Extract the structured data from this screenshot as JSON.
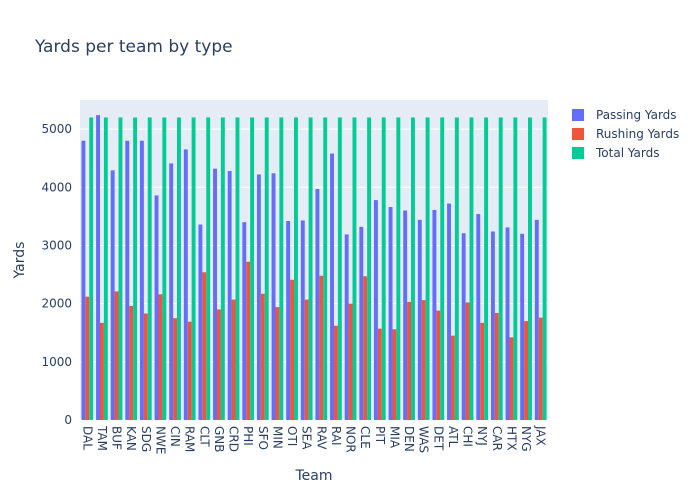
{
  "chart_data": {
    "type": "bar",
    "title": "Yards per team by type",
    "xlabel": "Team",
    "ylabel": "Yards",
    "ylim": [
      0,
      5500
    ],
    "yticks": [
      0,
      1000,
      2000,
      3000,
      4000,
      5000
    ],
    "grid": true,
    "legend": "top-right",
    "categories": [
      "DAL",
      "TAM",
      "BUF",
      "KAN",
      "SDG",
      "NWE",
      "CIN",
      "RAM",
      "CLT",
      "GNB",
      "CRD",
      "PHI",
      "SFO",
      "MIN",
      "OTI",
      "SEA",
      "RAV",
      "RAI",
      "NOR",
      "CLE",
      "PIT",
      "MIA",
      "DEN",
      "WAS",
      "DET",
      "ATL",
      "CHI",
      "NYJ",
      "CAR",
      "HTX",
      "NYG",
      "JAX"
    ],
    "series": [
      {
        "name": "Passing Yards",
        "color": "#636efa",
        "values": [
          4800,
          5240,
          4290,
          4800,
          4800,
          3860,
          4410,
          4650,
          3360,
          4320,
          4280,
          3400,
          4220,
          4240,
          3420,
          3430,
          3970,
          4580,
          3190,
          3320,
          3780,
          3660,
          3600,
          3440,
          3610,
          3720,
          3210,
          3540,
          3240,
          3310,
          3200,
          3440
        ]
      },
      {
        "name": "Rushing Yards",
        "color": "#ef553b",
        "values": [
          2120,
          1670,
          2210,
          1960,
          1830,
          2160,
          1750,
          1690,
          2540,
          1900,
          2070,
          2720,
          2170,
          1940,
          2410,
          2070,
          2480,
          1620,
          2000,
          2470,
          1570,
          1560,
          2030,
          2060,
          1880,
          1450,
          2020,
          1670,
          1840,
          1420,
          1700,
          1760
        ]
      },
      {
        "name": "Total Yards",
        "color": "#00cc96",
        "values": [
          5200,
          5200,
          5200,
          5200,
          5200,
          5200,
          5200,
          5200,
          5200,
          5200,
          5200,
          5200,
          5200,
          5200,
          5200,
          5200,
          5200,
          5200,
          5200,
          5200,
          5200,
          5200,
          5200,
          5200,
          5200,
          5200,
          5200,
          5200,
          5200,
          5200,
          5200,
          5200
        ]
      }
    ]
  }
}
